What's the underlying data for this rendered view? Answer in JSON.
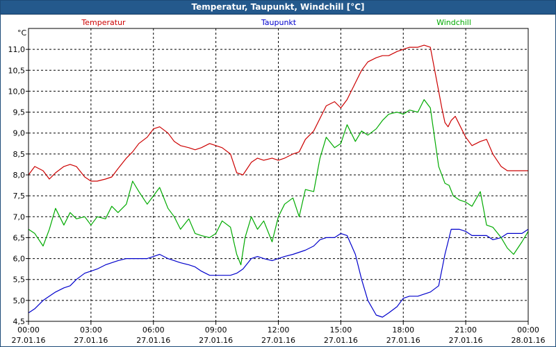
{
  "window": {
    "title": "Temperatur, Taupunkt, Windchill [°C]"
  },
  "chart_data": {
    "type": "line",
    "title": "Temperatur, Taupunkt, Windchill [°C]",
    "ylabel": "°C",
    "ylim": [
      4.5,
      11.5
    ],
    "y_ticks": [
      "4,5",
      "5,0",
      "5,5",
      "6,0",
      "6,5",
      "7,0",
      "7,5",
      "8,0",
      "8,5",
      "9,0",
      "9,5",
      "10,0",
      "10,5",
      "11,0"
    ],
    "xlim_hours": [
      0,
      24
    ],
    "x_tick_labels": [
      {
        "time": "00:00",
        "date": "27.01.16"
      },
      {
        "time": "03:00",
        "date": "27.01.16"
      },
      {
        "time": "06:00",
        "date": "27.01.16"
      },
      {
        "time": "09:00",
        "date": "27.01.16"
      },
      {
        "time": "12:00",
        "date": "27.01.16"
      },
      {
        "time": "15:00",
        "date": "27.01.16"
      },
      {
        "time": "18:00",
        "date": "27.01.16"
      },
      {
        "time": "21:00",
        "date": "27.01.16"
      },
      {
        "time": "00:00",
        "date": "28.01.16"
      }
    ],
    "grid": true,
    "legend_placement": "top",
    "series": [
      {
        "name": "Temperatur",
        "color": "#cc0000",
        "x_hours": [
          0,
          0.3,
          0.7,
          1.0,
          1.3,
          1.7,
          2.0,
          2.3,
          2.7,
          3.0,
          3.3,
          3.7,
          4.0,
          4.3,
          4.7,
          5.0,
          5.3,
          5.7,
          6.0,
          6.3,
          6.7,
          7.0,
          7.3,
          7.7,
          8.0,
          8.3,
          8.7,
          9.0,
          9.3,
          9.7,
          10.0,
          10.3,
          10.5,
          10.7,
          11.0,
          11.3,
          11.7,
          12.0,
          12.3,
          12.7,
          13.0,
          13.3,
          13.7,
          14.0,
          14.3,
          14.7,
          15.0,
          15.3,
          15.7,
          16.0,
          16.3,
          16.7,
          17.0,
          17.3,
          17.7,
          18.0,
          18.3,
          18.7,
          19.0,
          19.3,
          19.7,
          19.85,
          20.0,
          20.15,
          20.3,
          20.5,
          20.7,
          21.0,
          21.3,
          21.7,
          22.0,
          22.3,
          22.7,
          23.0,
          23.3,
          23.7,
          24.0
        ],
        "values": [
          8.0,
          8.2,
          8.1,
          7.9,
          8.05,
          8.2,
          8.25,
          8.2,
          7.95,
          7.85,
          7.85,
          7.9,
          7.95,
          8.15,
          8.4,
          8.55,
          8.75,
          8.9,
          9.1,
          9.15,
          9.0,
          8.8,
          8.7,
          8.65,
          8.6,
          8.65,
          8.75,
          8.7,
          8.65,
          8.5,
          8.05,
          8.0,
          8.15,
          8.3,
          8.4,
          8.35,
          8.4,
          8.35,
          8.4,
          8.5,
          8.55,
          8.85,
          9.05,
          9.35,
          9.65,
          9.75,
          9.6,
          9.8,
          10.2,
          10.5,
          10.7,
          10.8,
          10.85,
          10.85,
          10.95,
          11.0,
          11.05,
          11.05,
          11.1,
          11.05,
          10.0,
          9.6,
          9.25,
          9.15,
          9.3,
          9.4,
          9.2,
          8.9,
          8.7,
          8.8,
          8.85,
          8.5,
          8.2,
          8.1,
          8.1,
          8.1,
          8.1
        ]
      },
      {
        "name": "Taupunkt",
        "color": "#0000cc",
        "x_hours": [
          0,
          0.3,
          0.7,
          1.0,
          1.3,
          1.7,
          2.0,
          2.3,
          2.7,
          3.0,
          3.3,
          3.7,
          4.0,
          4.3,
          4.7,
          5.0,
          5.3,
          5.7,
          6.0,
          6.3,
          6.7,
          7.0,
          7.3,
          7.7,
          8.0,
          8.3,
          8.7,
          9.0,
          9.3,
          9.7,
          10.0,
          10.3,
          10.7,
          11.0,
          11.3,
          11.7,
          12.0,
          12.3,
          12.7,
          13.0,
          13.3,
          13.7,
          14.0,
          14.3,
          14.7,
          15.0,
          15.3,
          15.7,
          16.0,
          16.3,
          16.7,
          17.0,
          17.3,
          17.7,
          18.0,
          18.3,
          18.7,
          19.0,
          19.3,
          19.7,
          20.0,
          20.3,
          20.7,
          21.0,
          21.3,
          21.7,
          22.0,
          22.3,
          22.7,
          23.0,
          23.3,
          23.7,
          24.0
        ],
        "values": [
          4.7,
          4.8,
          5.0,
          5.1,
          5.2,
          5.3,
          5.35,
          5.5,
          5.65,
          5.7,
          5.75,
          5.85,
          5.9,
          5.95,
          6.0,
          6.0,
          6.0,
          6.0,
          6.05,
          6.1,
          6.0,
          5.95,
          5.9,
          5.85,
          5.8,
          5.7,
          5.6,
          5.6,
          5.6,
          5.6,
          5.65,
          5.75,
          6.0,
          6.05,
          6.0,
          5.95,
          6.0,
          6.05,
          6.1,
          6.15,
          6.2,
          6.3,
          6.45,
          6.5,
          6.5,
          6.6,
          6.55,
          6.1,
          5.5,
          5.0,
          4.65,
          4.6,
          4.7,
          4.85,
          5.05,
          5.1,
          5.1,
          5.15,
          5.2,
          5.35,
          6.1,
          6.7,
          6.7,
          6.65,
          6.55,
          6.55,
          6.55,
          6.45,
          6.5,
          6.6,
          6.6,
          6.6,
          6.7
        ]
      },
      {
        "name": "Windchill",
        "color": "#00aa00",
        "x_hours": [
          0,
          0.3,
          0.7,
          1.0,
          1.3,
          1.7,
          2.0,
          2.3,
          2.7,
          3.0,
          3.3,
          3.7,
          4.0,
          4.3,
          4.7,
          5.0,
          5.3,
          5.7,
          6.0,
          6.3,
          6.7,
          7.0,
          7.3,
          7.7,
          8.0,
          8.3,
          8.7,
          9.0,
          9.3,
          9.7,
          10.0,
          10.2,
          10.4,
          10.7,
          11.0,
          11.3,
          11.7,
          12.0,
          12.3,
          12.7,
          13.0,
          13.3,
          13.7,
          14.0,
          14.3,
          14.7,
          15.0,
          15.3,
          15.7,
          16.0,
          16.3,
          16.7,
          17.0,
          17.3,
          17.7,
          18.0,
          18.3,
          18.7,
          19.0,
          19.3,
          19.7,
          20.0,
          20.2,
          20.4,
          20.7,
          21.0,
          21.3,
          21.7,
          22.0,
          22.3,
          22.7,
          23.0,
          23.3,
          23.7,
          24.0
        ],
        "values": [
          6.7,
          6.6,
          6.3,
          6.7,
          7.2,
          6.8,
          7.1,
          6.95,
          7.0,
          6.8,
          7.0,
          6.95,
          7.25,
          7.1,
          7.3,
          7.85,
          7.6,
          7.3,
          7.5,
          7.7,
          7.2,
          7.0,
          6.7,
          6.95,
          6.6,
          6.55,
          6.5,
          6.6,
          6.9,
          6.75,
          6.1,
          5.85,
          6.5,
          7.0,
          6.7,
          6.9,
          6.4,
          7.0,
          7.3,
          7.45,
          7.0,
          7.65,
          7.6,
          8.4,
          8.9,
          8.65,
          8.75,
          9.2,
          8.8,
          9.05,
          8.95,
          9.1,
          9.3,
          9.45,
          9.5,
          9.45,
          9.55,
          9.5,
          9.8,
          9.6,
          8.2,
          7.8,
          7.75,
          7.5,
          7.4,
          7.35,
          7.25,
          7.6,
          6.8,
          6.75,
          6.5,
          6.25,
          6.1,
          6.4,
          6.65
        ]
      }
    ]
  }
}
